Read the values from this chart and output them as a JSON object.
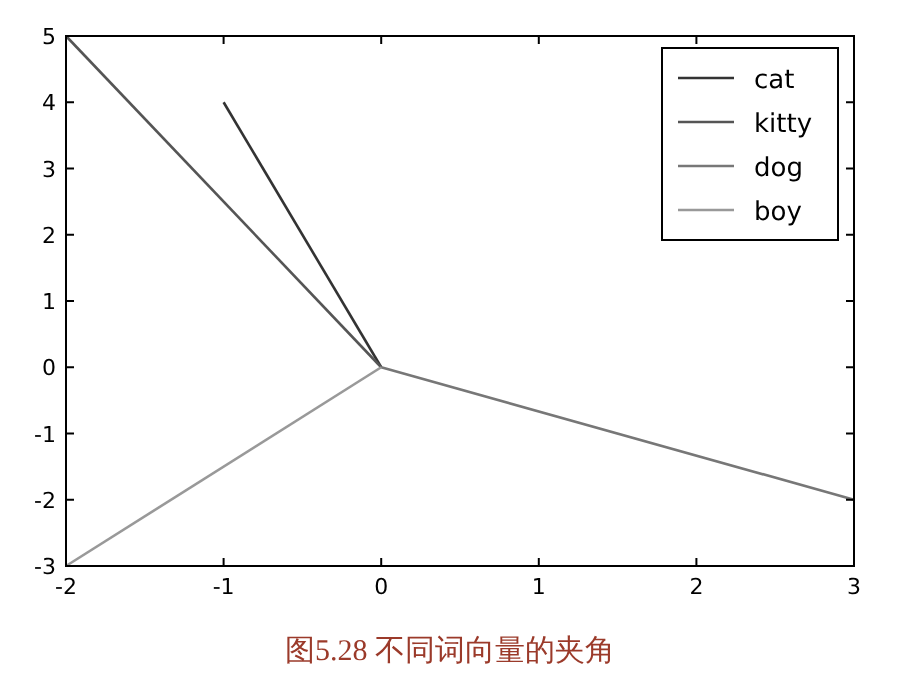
{
  "chart_data": {
    "type": "line",
    "series": [
      {
        "name": "cat",
        "color": "#333333",
        "x": [
          0,
          -1
        ],
        "values": [
          0,
          4
        ]
      },
      {
        "name": "kitty",
        "color": "#555555",
        "x": [
          0,
          -2
        ],
        "values": [
          0,
          5
        ]
      },
      {
        "name": "dog",
        "color": "#777777",
        "x": [
          0,
          3
        ],
        "values": [
          0,
          -2
        ]
      },
      {
        "name": "boy",
        "color": "#999999",
        "x": [
          0,
          -2
        ],
        "values": [
          0,
          -3
        ]
      }
    ],
    "xlim": [
      -2,
      3
    ],
    "xticks": [
      -2,
      -1,
      0,
      1,
      2,
      3
    ],
    "ylim": [
      -3,
      5
    ],
    "yticks": [
      -3,
      -2,
      -1,
      0,
      1,
      2,
      3,
      4,
      5
    ],
    "legend": "top right",
    "grid": false,
    "marker": "none",
    "line_style": "solid",
    "annotations": [
      "图5.28 不同词向量的夹角"
    ]
  }
}
